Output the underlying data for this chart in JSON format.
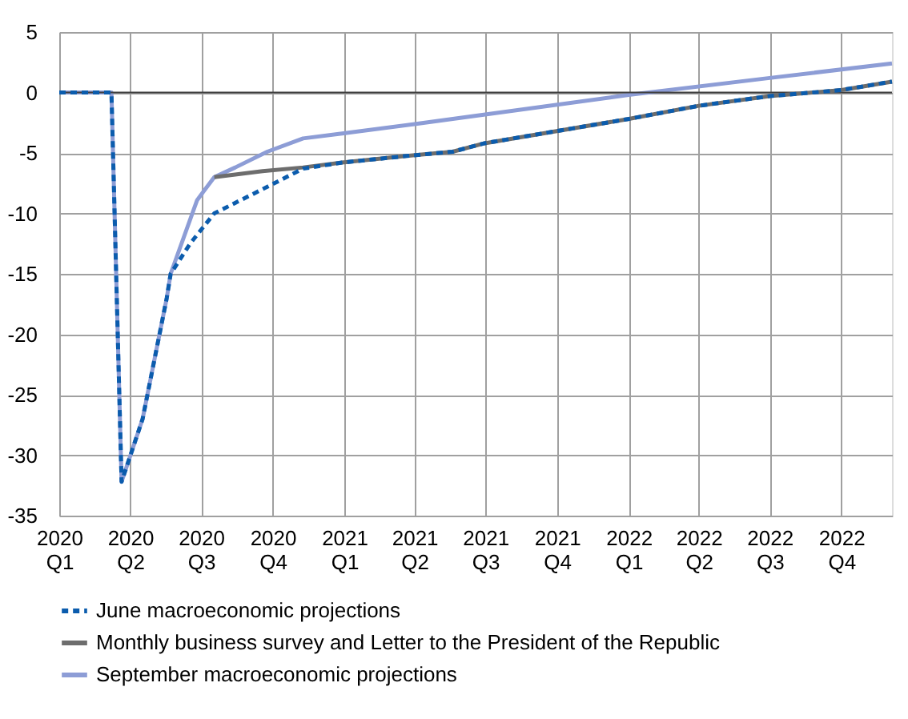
{
  "chart_data": {
    "type": "line",
    "xlim": [
      "2020-01-01",
      "2022-12-05"
    ],
    "ylim": [
      -35,
      5
    ],
    "xticks": [
      {
        "value": "2020-01-01",
        "label": "2020 Q1"
      },
      {
        "value": "2020-04-01",
        "label": "2020 Q2"
      },
      {
        "value": "2020-07-01",
        "label": "2020 Q3"
      },
      {
        "value": "2020-10-01",
        "label": "2020 Q4"
      },
      {
        "value": "2021-01-01",
        "label": "2021 Q1"
      },
      {
        "value": "2021-04-01",
        "label": "2021 Q2"
      },
      {
        "value": "2021-07-01",
        "label": "2021 Q3"
      },
      {
        "value": "2021-10-01",
        "label": "2021 Q4"
      },
      {
        "value": "2022-01-01",
        "label": "2022 Q1"
      },
      {
        "value": "2022-04-01",
        "label": "2022 Q2"
      },
      {
        "value": "2022-07-01",
        "label": "2022 Q3"
      },
      {
        "value": "2022-10-01",
        "label": "2022 Q4"
      }
    ],
    "yticks": [
      -35,
      -30,
      -25,
      -20,
      -15,
      -10,
      -5,
      0,
      5
    ],
    "grid": true,
    "legend": "bottom",
    "ref_lines": [
      {
        "axis": "y",
        "value": 0,
        "color": "#404040"
      }
    ],
    "series": [
      {
        "name": "June macroeconomic projections",
        "color": "#0b5cad",
        "line_style": "dashed",
        "x": [
          "2020-01-01",
          "2020-03-08",
          "2020-03-21",
          "2020-04-17",
          "2020-05-18",
          "2020-05-23",
          "2020-06-17",
          "2020-07-18",
          "2020-09-18",
          "2020-11-09",
          "2020-12-29",
          "2021-03-30",
          "2021-05-20",
          "2021-06-30",
          "2021-12-31",
          "2022-04-01",
          "2022-07-01",
          "2022-10-01",
          "2022-12-05"
        ],
        "values": [
          0,
          0,
          -32.2,
          -27,
          -17,
          -15,
          -12.5,
          -10,
          -8,
          -6.3,
          -5.8,
          -5.2,
          -4.9,
          -4.2,
          -2.2,
          -1.1,
          -0.3,
          0.2,
          0.9
        ]
      },
      {
        "name": "Monthly business survey and Letter to the President of the Republic",
        "color": "#6d6d6d",
        "line_style": "solid",
        "x": [
          "2020-07-18",
          "2020-09-18",
          "2020-11-09",
          "2020-12-29",
          "2021-03-30",
          "2021-05-20",
          "2021-06-30",
          "2021-12-31",
          "2022-04-01",
          "2022-07-01",
          "2022-10-01",
          "2022-12-05"
        ],
        "values": [
          -7,
          -6.5,
          -6.2,
          -5.8,
          -5.2,
          -4.9,
          -4.2,
          -2.2,
          -1.1,
          -0.3,
          0.2,
          0.9
        ]
      },
      {
        "name": "September macroeconomic projections",
        "color": "#8d9dd6",
        "line_style": "solid",
        "x": [
          "2020-01-01",
          "2020-03-08",
          "2020-03-21",
          "2020-04-17",
          "2020-05-18",
          "2020-05-23",
          "2020-06-26",
          "2020-07-18",
          "2020-08-14",
          "2020-09-24",
          "2020-11-09",
          "2020-12-29",
          "2021-04-03",
          "2021-06-10",
          "2022-01-01",
          "2022-07-01",
          "2022-12-05"
        ],
        "values": [
          0,
          0,
          -32.2,
          -27,
          -17,
          -15,
          -8.9,
          -7,
          -6.2,
          -4.9,
          -3.8,
          -3.4,
          -2.6,
          -2.0,
          -0.2,
          1.2,
          2.4
        ]
      }
    ]
  }
}
